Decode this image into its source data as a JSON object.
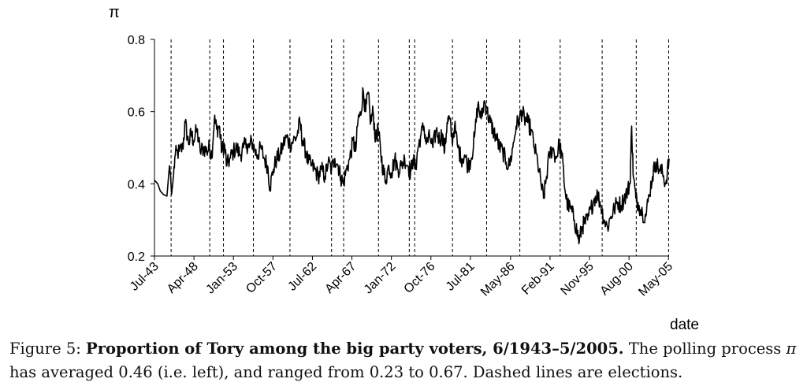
{
  "chart_data": {
    "type": "line",
    "ylabel": "π",
    "xlabel": "date",
    "ylim": [
      0.2,
      0.8
    ],
    "yticks": [
      0.2,
      0.4,
      0.6,
      0.8
    ],
    "xlim": [
      1943.5,
      2005.4
    ],
    "xticks": [
      {
        "label": "Jul-43",
        "value": 1943.5
      },
      {
        "label": "Apr-48",
        "value": 1948.25
      },
      {
        "label": "Jan-53",
        "value": 1953.0
      },
      {
        "label": "Oct-57",
        "value": 1957.75
      },
      {
        "label": "Jul-62",
        "value": 1962.5
      },
      {
        "label": "Apr-67",
        "value": 1967.25
      },
      {
        "label": "Jan-72",
        "value": 1972.0
      },
      {
        "label": "Oct-76",
        "value": 1976.75
      },
      {
        "label": "Jul-81",
        "value": 1981.5
      },
      {
        "label": "May-86",
        "value": 1986.33
      },
      {
        "label": "Feb-91",
        "value": 1991.08
      },
      {
        "label": "Nov-95",
        "value": 1995.83
      },
      {
        "label": "Aug-00",
        "value": 2000.58
      },
      {
        "label": "May-05",
        "value": 2005.33
      }
    ],
    "elections": [
      1945.5,
      1950.15,
      1951.8,
      1955.4,
      1959.8,
      1964.8,
      1966.25,
      1970.45,
      1974.15,
      1974.8,
      1979.35,
      1983.45,
      1987.45,
      1992.3,
      1997.35,
      2001.45,
      2005.35
    ],
    "series": [
      {
        "color": "#000000",
        "points": [
          [
            1943.5,
            0.41
          ],
          [
            1943.9,
            0.4
          ],
          [
            1944.2,
            0.38
          ],
          [
            1944.6,
            0.37
          ],
          [
            1945.0,
            0.366
          ],
          [
            1945.3,
            0.45
          ],
          [
            1945.45,
            0.42
          ],
          [
            1945.55,
            0.37
          ],
          [
            1945.7,
            0.4
          ],
          [
            1946.0,
            0.48
          ],
          [
            1946.5,
            0.49
          ],
          [
            1946.9,
            0.5
          ],
          [
            1947.2,
            0.57
          ],
          [
            1947.6,
            0.51
          ],
          [
            1947.9,
            0.54
          ],
          [
            1948.2,
            0.52
          ],
          [
            1948.6,
            0.55
          ],
          [
            1949.0,
            0.49
          ],
          [
            1949.4,
            0.5
          ],
          [
            1949.8,
            0.49
          ],
          [
            1950.1,
            0.5
          ],
          [
            1950.4,
            0.48
          ],
          [
            1950.7,
            0.58
          ],
          [
            1951.0,
            0.55
          ],
          [
            1951.3,
            0.56
          ],
          [
            1951.6,
            0.49
          ],
          [
            1951.9,
            0.51
          ],
          [
            1952.2,
            0.45
          ],
          [
            1952.6,
            0.47
          ],
          [
            1953.0,
            0.49
          ],
          [
            1953.4,
            0.5
          ],
          [
            1953.8,
            0.48
          ],
          [
            1954.2,
            0.5
          ],
          [
            1954.6,
            0.51
          ],
          [
            1954.9,
            0.5
          ],
          [
            1955.2,
            0.52
          ],
          [
            1955.6,
            0.49
          ],
          [
            1955.9,
            0.48
          ],
          [
            1956.3,
            0.5
          ],
          [
            1956.7,
            0.47
          ],
          [
            1957.1,
            0.45
          ],
          [
            1957.4,
            0.39
          ],
          [
            1957.8,
            0.44
          ],
          [
            1958.2,
            0.47
          ],
          [
            1958.6,
            0.48
          ],
          [
            1959.0,
            0.51
          ],
          [
            1959.4,
            0.53
          ],
          [
            1959.8,
            0.51
          ],
          [
            1960.2,
            0.52
          ],
          [
            1960.6,
            0.53
          ],
          [
            1961.0,
            0.57
          ],
          [
            1961.3,
            0.52
          ],
          [
            1961.7,
            0.49
          ],
          [
            1962.0,
            0.46
          ],
          [
            1962.4,
            0.45
          ],
          [
            1962.8,
            0.44
          ],
          [
            1963.2,
            0.42
          ],
          [
            1963.6,
            0.44
          ],
          [
            1964.0,
            0.42
          ],
          [
            1964.4,
            0.46
          ],
          [
            1964.8,
            0.44
          ],
          [
            1965.2,
            0.47
          ],
          [
            1965.6,
            0.45
          ],
          [
            1965.9,
            0.42
          ],
          [
            1966.2,
            0.4
          ],
          [
            1966.6,
            0.44
          ],
          [
            1967.0,
            0.47
          ],
          [
            1967.4,
            0.52
          ],
          [
            1967.7,
            0.49
          ],
          [
            1968.0,
            0.58
          ],
          [
            1968.3,
            0.59
          ],
          [
            1968.6,
            0.66
          ],
          [
            1968.9,
            0.6
          ],
          [
            1969.2,
            0.65
          ],
          [
            1969.5,
            0.57
          ],
          [
            1969.8,
            0.6
          ],
          [
            1970.1,
            0.52
          ],
          [
            1970.4,
            0.55
          ],
          [
            1970.7,
            0.49
          ],
          [
            1971.0,
            0.44
          ],
          [
            1971.3,
            0.41
          ],
          [
            1971.7,
            0.45
          ],
          [
            1972.0,
            0.43
          ],
          [
            1972.4,
            0.47
          ],
          [
            1972.8,
            0.44
          ],
          [
            1973.2,
            0.45
          ],
          [
            1973.6,
            0.47
          ],
          [
            1974.0,
            0.45
          ],
          [
            1974.3,
            0.43
          ],
          [
            1974.6,
            0.47
          ],
          [
            1974.9,
            0.44
          ],
          [
            1975.2,
            0.5
          ],
          [
            1975.5,
            0.53
          ],
          [
            1975.9,
            0.56
          ],
          [
            1976.2,
            0.51
          ],
          [
            1976.6,
            0.53
          ],
          [
            1977.0,
            0.5
          ],
          [
            1977.4,
            0.55
          ],
          [
            1977.8,
            0.52
          ],
          [
            1978.1,
            0.54
          ],
          [
            1978.4,
            0.49
          ],
          [
            1978.7,
            0.57
          ],
          [
            1979.0,
            0.58
          ],
          [
            1979.3,
            0.52
          ],
          [
            1979.6,
            0.56
          ],
          [
            1980.0,
            0.5
          ],
          [
            1980.4,
            0.47
          ],
          [
            1980.8,
            0.48
          ],
          [
            1981.2,
            0.45
          ],
          [
            1981.6,
            0.47
          ],
          [
            1982.0,
            0.53
          ],
          [
            1982.4,
            0.62
          ],
          [
            1982.8,
            0.58
          ],
          [
            1983.2,
            0.63
          ],
          [
            1983.5,
            0.6
          ],
          [
            1983.9,
            0.57
          ],
          [
            1984.2,
            0.55
          ],
          [
            1984.6,
            0.53
          ],
          [
            1985.0,
            0.5
          ],
          [
            1985.4,
            0.49
          ],
          [
            1985.8,
            0.46
          ],
          [
            1986.2,
            0.45
          ],
          [
            1986.6,
            0.5
          ],
          [
            1987.0,
            0.56
          ],
          [
            1987.4,
            0.58
          ],
          [
            1987.7,
            0.6
          ],
          [
            1988.0,
            0.58
          ],
          [
            1988.4,
            0.57
          ],
          [
            1988.8,
            0.55
          ],
          [
            1989.2,
            0.5
          ],
          [
            1989.6,
            0.46
          ],
          [
            1990.0,
            0.4
          ],
          [
            1990.3,
            0.36
          ],
          [
            1990.6,
            0.41
          ],
          [
            1991.0,
            0.48
          ],
          [
            1991.4,
            0.5
          ],
          [
            1991.8,
            0.47
          ],
          [
            1992.2,
            0.51
          ],
          [
            1992.5,
            0.48
          ],
          [
            1992.9,
            0.38
          ],
          [
            1993.2,
            0.34
          ],
          [
            1993.6,
            0.33
          ],
          [
            1994.0,
            0.3
          ],
          [
            1994.3,
            0.27
          ],
          [
            1994.6,
            0.24
          ],
          [
            1994.9,
            0.28
          ],
          [
            1995.2,
            0.29
          ],
          [
            1995.6,
            0.3
          ],
          [
            1996.0,
            0.33
          ],
          [
            1996.4,
            0.36
          ],
          [
            1996.8,
            0.37
          ],
          [
            1997.2,
            0.34
          ],
          [
            1997.6,
            0.3
          ],
          [
            1998.0,
            0.28
          ],
          [
            1998.4,
            0.31
          ],
          [
            1998.8,
            0.33
          ],
          [
            1999.2,
            0.35
          ],
          [
            1999.6,
            0.34
          ],
          [
            2000.0,
            0.36
          ],
          [
            2000.4,
            0.38
          ],
          [
            2000.7,
            0.4
          ],
          [
            2000.9,
            0.56
          ],
          [
            2001.1,
            0.42
          ],
          [
            2001.4,
            0.36
          ],
          [
            2001.8,
            0.34
          ],
          [
            2002.2,
            0.32
          ],
          [
            2002.6,
            0.31
          ],
          [
            2003.0,
            0.37
          ],
          [
            2003.4,
            0.42
          ],
          [
            2003.8,
            0.46
          ],
          [
            2004.2,
            0.44
          ],
          [
            2004.6,
            0.43
          ],
          [
            2005.0,
            0.4
          ],
          [
            2005.4,
            0.47
          ]
        ]
      }
    ]
  },
  "caption": {
    "prefix": "Figure 5: ",
    "title": "Proportion of Tory among the big party voters, 6/1943–5/2005.",
    "text_1": " The polling process ",
    "symbol": "π",
    "text_2": " has averaged 0.46 (i.e. left), and ranged from 0.23 to 0.67. Dashed lines are elections."
  }
}
